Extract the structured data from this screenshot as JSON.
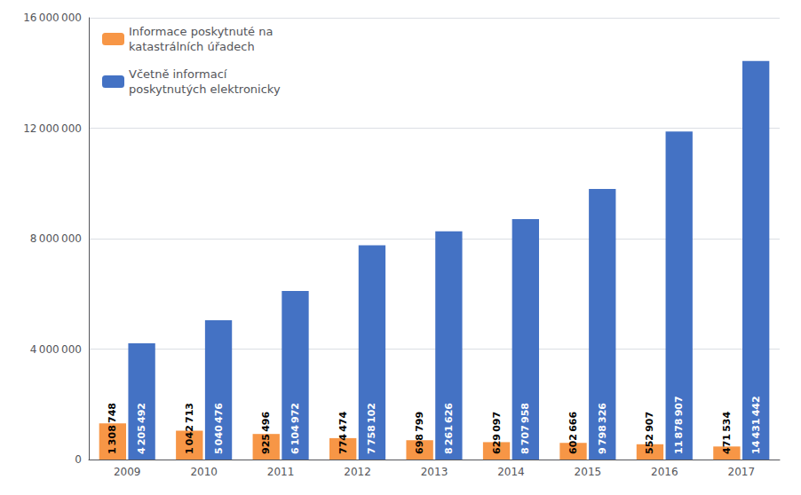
{
  "chart_data": {
    "type": "bar",
    "categories": [
      "2009",
      "2010",
      "2011",
      "2012",
      "2013",
      "2014",
      "2015",
      "2016",
      "2017"
    ],
    "series": [
      {
        "name": "Informace poskytnuté na\nkatastrálních úřadech",
        "color": "#F79646",
        "values": [
          1308748,
          1042713,
          925496,
          774474,
          698799,
          629097,
          602666,
          552907,
          471534
        ],
        "value_labels": [
          "1 308 748",
          "1 042 713",
          "925 496",
          "774 474",
          "698 799",
          "629 097",
          "602 666",
          "552 907",
          "471 534"
        ]
      },
      {
        "name": "Včetně informací\nposkytnutých elektronicky",
        "color": "#4472C4",
        "values": [
          4205492,
          5040476,
          6104972,
          7758102,
          8261626,
          8707958,
          9798326,
          11878907,
          14431442
        ],
        "value_labels": [
          "4 205 492",
          "5 040 476",
          "6 104 972",
          "7 758 102",
          "8 261 626",
          "8 707 958",
          "9 798 326",
          "11 878 907",
          "14 431 442"
        ]
      }
    ],
    "ylim": [
      0,
      16000000
    ],
    "yticks": [
      0,
      {
        "value": 4000000,
        "label": "4 000 000"
      },
      {
        "value": 8000000,
        "label": "8 000 000"
      },
      {
        "value": 12000000,
        "label": "12 000 000"
      },
      {
        "value": 16000000,
        "label": "16 000 000"
      }
    ],
    "grid": true,
    "legend": "upper left",
    "data_labels": true
  }
}
